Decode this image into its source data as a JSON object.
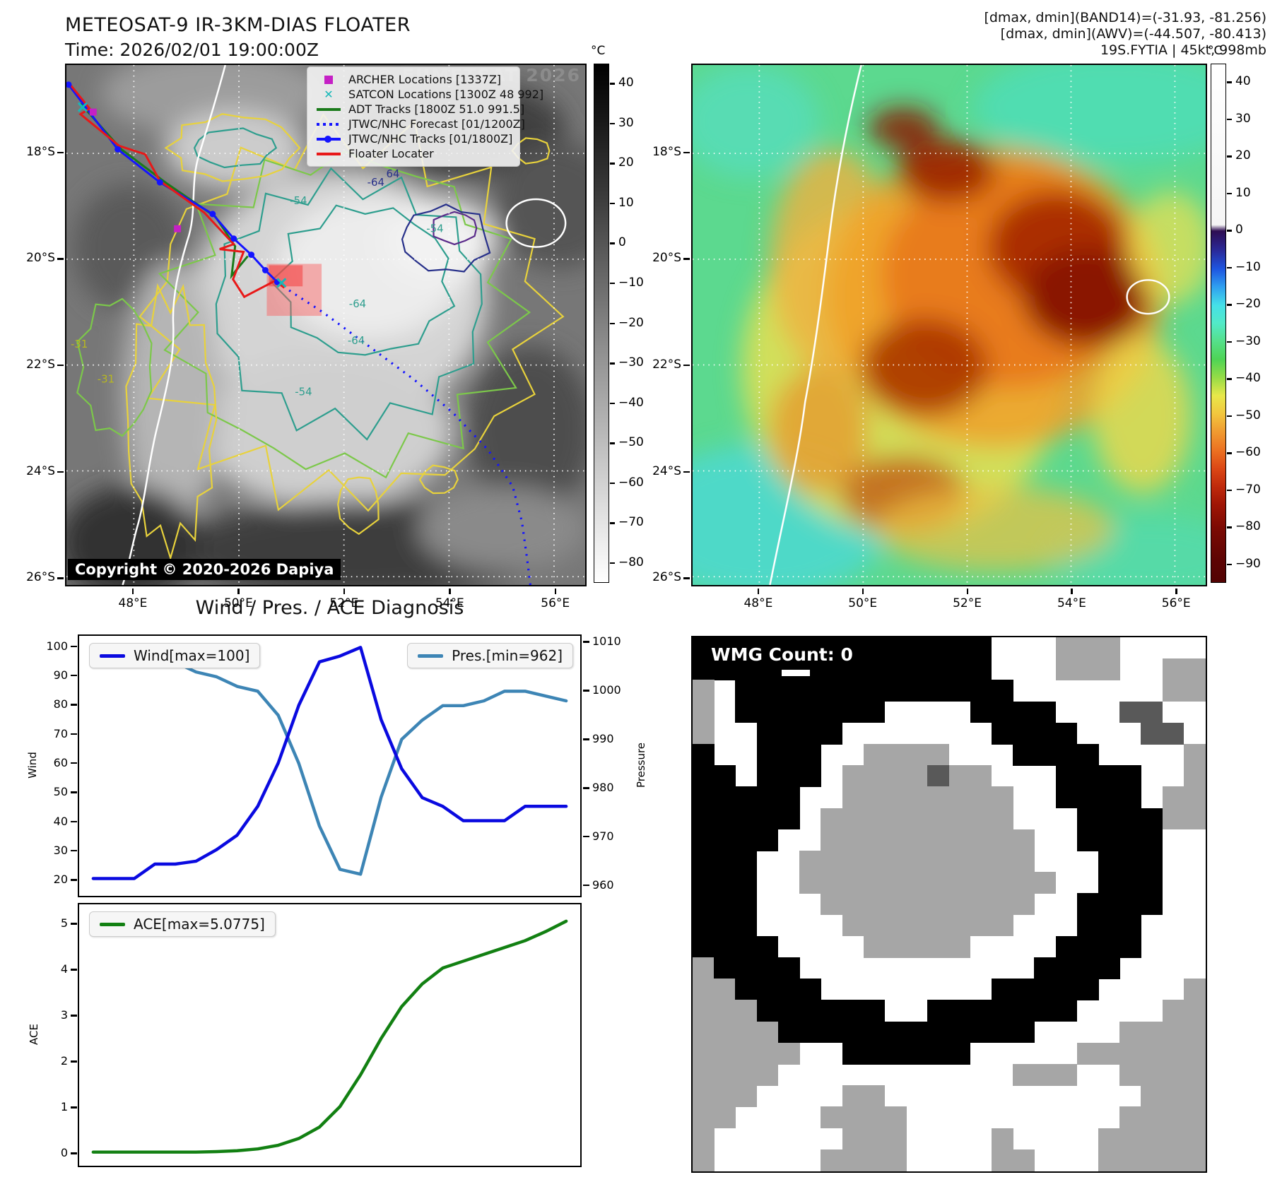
{
  "header": {
    "title": "METEOSAT-9 IR-3KM-DIAS FLOATER",
    "time": "Time: 2026/02/01 19:00:00Z",
    "right_line1": "[dmax, dmin](BAND14)=(-31.93, -81.256)",
    "right_line2": "[dmax, dmin](AWV)=(-44.507, -80.413)",
    "right_line3": "19S.FYTIA | 45kt, 998mb"
  },
  "ir_map": {
    "watermark": "© EUMETSAT 2026",
    "copyright": "Copyright © 2020-2026 Dapiya",
    "x_ticks": [
      "48°E",
      "50°E",
      "52°E",
      "54°E",
      "56°E"
    ],
    "y_ticks": [
      "18°S",
      "20°S",
      "22°S",
      "24°S",
      "26°S"
    ],
    "legend": [
      {
        "label": "ARCHER Locations [1337Z]",
        "marker": "square",
        "color": "#c520c5"
      },
      {
        "label": "SATCON Locations [1300Z 48 992]",
        "marker": "x",
        "color": "#17b8b8"
      },
      {
        "label": "ADT Tracks [1800Z 51.0 991.5]",
        "marker": "line",
        "color": "#1a7a1a"
      },
      {
        "label": "JTWC/NHC Forecast [01/1200Z]",
        "marker": "dotted",
        "color": "#1414ff"
      },
      {
        "label": "JTWC/NHC Tracks [01/1800Z]",
        "marker": "line-dot",
        "color": "#1414ff"
      },
      {
        "label": "Floater Locater",
        "marker": "line",
        "color": "#e81818"
      }
    ],
    "contour_labels": [
      "-54",
      "-64",
      "-54",
      "-64",
      "-64",
      "-54",
      "-31",
      "-31",
      "64"
    ],
    "colorbar": {
      "title": "°C",
      "vmin": -85,
      "vmax": 45,
      "ticks": [
        40,
        30,
        20,
        10,
        0,
        -10,
        -20,
        -30,
        -40,
        -50,
        -60,
        -70,
        -80
      ]
    }
  },
  "color_map": {
    "x_ticks": [
      "48°E",
      "50°E",
      "52°E",
      "54°E",
      "56°E"
    ],
    "y_ticks": [
      "18°S",
      "20°S",
      "22°S",
      "24°S",
      "26°S"
    ],
    "colorbar": {
      "title": "°C",
      "vmin": -95,
      "vmax": 45,
      "ticks": [
        40,
        30,
        20,
        10,
        0,
        -10,
        -20,
        -30,
        -40,
        -50,
        -60,
        -70,
        -80,
        -90
      ]
    }
  },
  "diagnosis": {
    "title": "Wind / Pres. / ACE Diagnosis",
    "wind_legend": "Wind[max=100]",
    "pres_legend": "Pres.[min=962]",
    "ace_legend": "ACE[max=5.0775]",
    "wind_label": "Wind",
    "pressure_label": "Pressure",
    "ace_label": "ACE",
    "wind_ticks": [
      20,
      30,
      40,
      50,
      60,
      70,
      80,
      90,
      100
    ],
    "pres_ticks": [
      960,
      970,
      980,
      990,
      1000,
      1010
    ],
    "ace_ticks": [
      0,
      1,
      2,
      3,
      4,
      5
    ]
  },
  "chart_data": [
    {
      "type": "line",
      "title": "Wind / Pres. / ACE Diagnosis",
      "x": [
        0,
        1,
        2,
        3,
        4,
        5,
        6,
        7,
        8,
        9,
        10,
        11,
        12,
        13,
        14,
        15,
        16,
        17,
        18,
        19,
        20,
        21,
        22,
        23
      ],
      "series": [
        {
          "name": "Wind[max=100]",
          "color": "#0a0ae0",
          "axis": "left",
          "values": [
            20,
            20,
            20,
            25,
            25,
            26,
            30,
            35,
            45,
            60,
            80,
            95,
            97,
            100,
            75,
            58,
            48,
            45,
            40,
            40,
            40,
            45,
            45,
            45
          ]
        },
        {
          "name": "Pres.[min=962]",
          "color": "#3d85b5",
          "axis": "right",
          "values": [
            1009,
            1009,
            1008,
            1007,
            1006,
            1004,
            1003,
            1001,
            1000,
            995,
            985,
            972,
            963,
            962,
            978,
            990,
            994,
            997,
            997,
            998,
            1000,
            1000,
            999,
            998
          ]
        }
      ],
      "ylabel_left": "Wind",
      "ylabel_right": "Pressure",
      "ylim_left": [
        14,
        104
      ],
      "ylim_right": [
        957.5,
        1011.5
      ],
      "legend_position": [
        "upper left",
        "upper right"
      ],
      "grid": false
    },
    {
      "type": "line",
      "title": "ACE",
      "x": [
        0,
        1,
        2,
        3,
        4,
        5,
        6,
        7,
        8,
        9,
        10,
        11,
        12,
        13,
        14,
        15,
        16,
        17,
        18,
        19,
        20,
        21,
        22,
        23
      ],
      "series": [
        {
          "name": "ACE[max=5.0775]",
          "color": "#128012",
          "axis": "left",
          "values": [
            0,
            0,
            0,
            0,
            0,
            0,
            0.01,
            0.03,
            0.07,
            0.15,
            0.3,
            0.55,
            1.0,
            1.7,
            2.5,
            3.2,
            3.7,
            4.05,
            4.2,
            4.35,
            4.5,
            4.65,
            4.85,
            5.08
          ]
        }
      ],
      "ylabel": "ACE",
      "ylim": [
        -0.3,
        5.45
      ],
      "legend_position": "upper left",
      "grid": false
    }
  ],
  "wmg": {
    "count_label": "WMG Count: 0",
    "palette": {
      "K": "#000000",
      "W": "#ffffff",
      "G": "#a6a6a6",
      "D": "#595959"
    },
    "grid": [
      "KKKKKKKKKKKKKKWWWGGGWWWW",
      "KKKKKKKKKKKKKKWWWGGGWWGG",
      "GWKKKKKKKKKKKKKWWWWWWWGG",
      "GWKKKKKKKWWWWKKKKWWWDDWW",
      "GWWKKKKWWWWWWWKKKKWWWDDW",
      "KWWKKKWWGGGGWWWKKKKWWWWG",
      "KKWKKKWGGGGDGGWWWKKKKWWG",
      "KKKKKWWGGGGGGGGWWKKKKWGG",
      "KKKKKWGGGGGGGGGWWWKKKKGG",
      "KKKKWWGGGGGGGGGGWWKKKKWW",
      "KKKWWGGGGGGGGGGGWWWKKKWW",
      "KKKWWGGGGGGGGGGGGWWKKKWW",
      "KKKWWWGGGGGGGGGGWWKKKKWW",
      "KKKWWWWGGGGGGGGWWWKKKWWW",
      "KKKKWWWWGGGGGWWWWKKKKWWW",
      "GKKKKWWWWWWWWWWWKKKKWWWW",
      "GGKKKKWWWWWWWWKKKKKWWWWG",
      "GGGKKKKKKWWKKKKKKKWWWWGG",
      "GGGGKKKKKKKKKKKKWWWWGGGG",
      "GGGGGWWKKKKKKWWWWWGGGGGG",
      "GGGGWWWWWWWWWWWGGGWWGGGG",
      "GGGWWWWGGWWWWWWWWWWWWGGG",
      "GGWWWWGGGGWWWWWWWWWWGGGG",
      "GWWWWWWGGGWWWWGWWWWGGGGG",
      "GWWWWWGGGGWWWWGGWWWGGGGG"
    ]
  }
}
